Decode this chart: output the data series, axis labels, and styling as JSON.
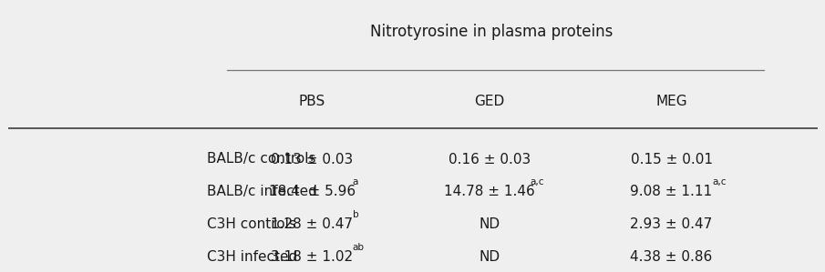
{
  "title": "Nitrotyrosine in plasma proteins",
  "col_headers": [
    "PBS",
    "GED",
    "MEG"
  ],
  "row_labels": [
    "BALB/c controls",
    "BALB/c infected",
    "C3H controls",
    "C3H infected"
  ],
  "cell_main": [
    [
      "0.13 ± 0.03",
      "0.16 ± 0.03",
      "0.15 ± 0.01"
    ],
    [
      "18.4  ± 5.96",
      "14.78 ± 1.46",
      "9.08 ± 1.11"
    ],
    [
      "1.28 ± 0.47",
      "ND",
      "2.93 ± 0.47"
    ],
    [
      "3.18 ± 1.02",
      "ND",
      "4.38 ± 0.86"
    ]
  ],
  "superscripts": [
    [
      "",
      "",
      ""
    ],
    [
      "a",
      "a,c",
      "a,c"
    ],
    [
      "b",
      "",
      ""
    ],
    [
      "ab",
      "",
      ""
    ]
  ],
  "bg_color": "#efefef",
  "text_color": "#1a1a1a",
  "font_size": 11,
  "header_font_size": 11,
  "title_font_size": 12
}
